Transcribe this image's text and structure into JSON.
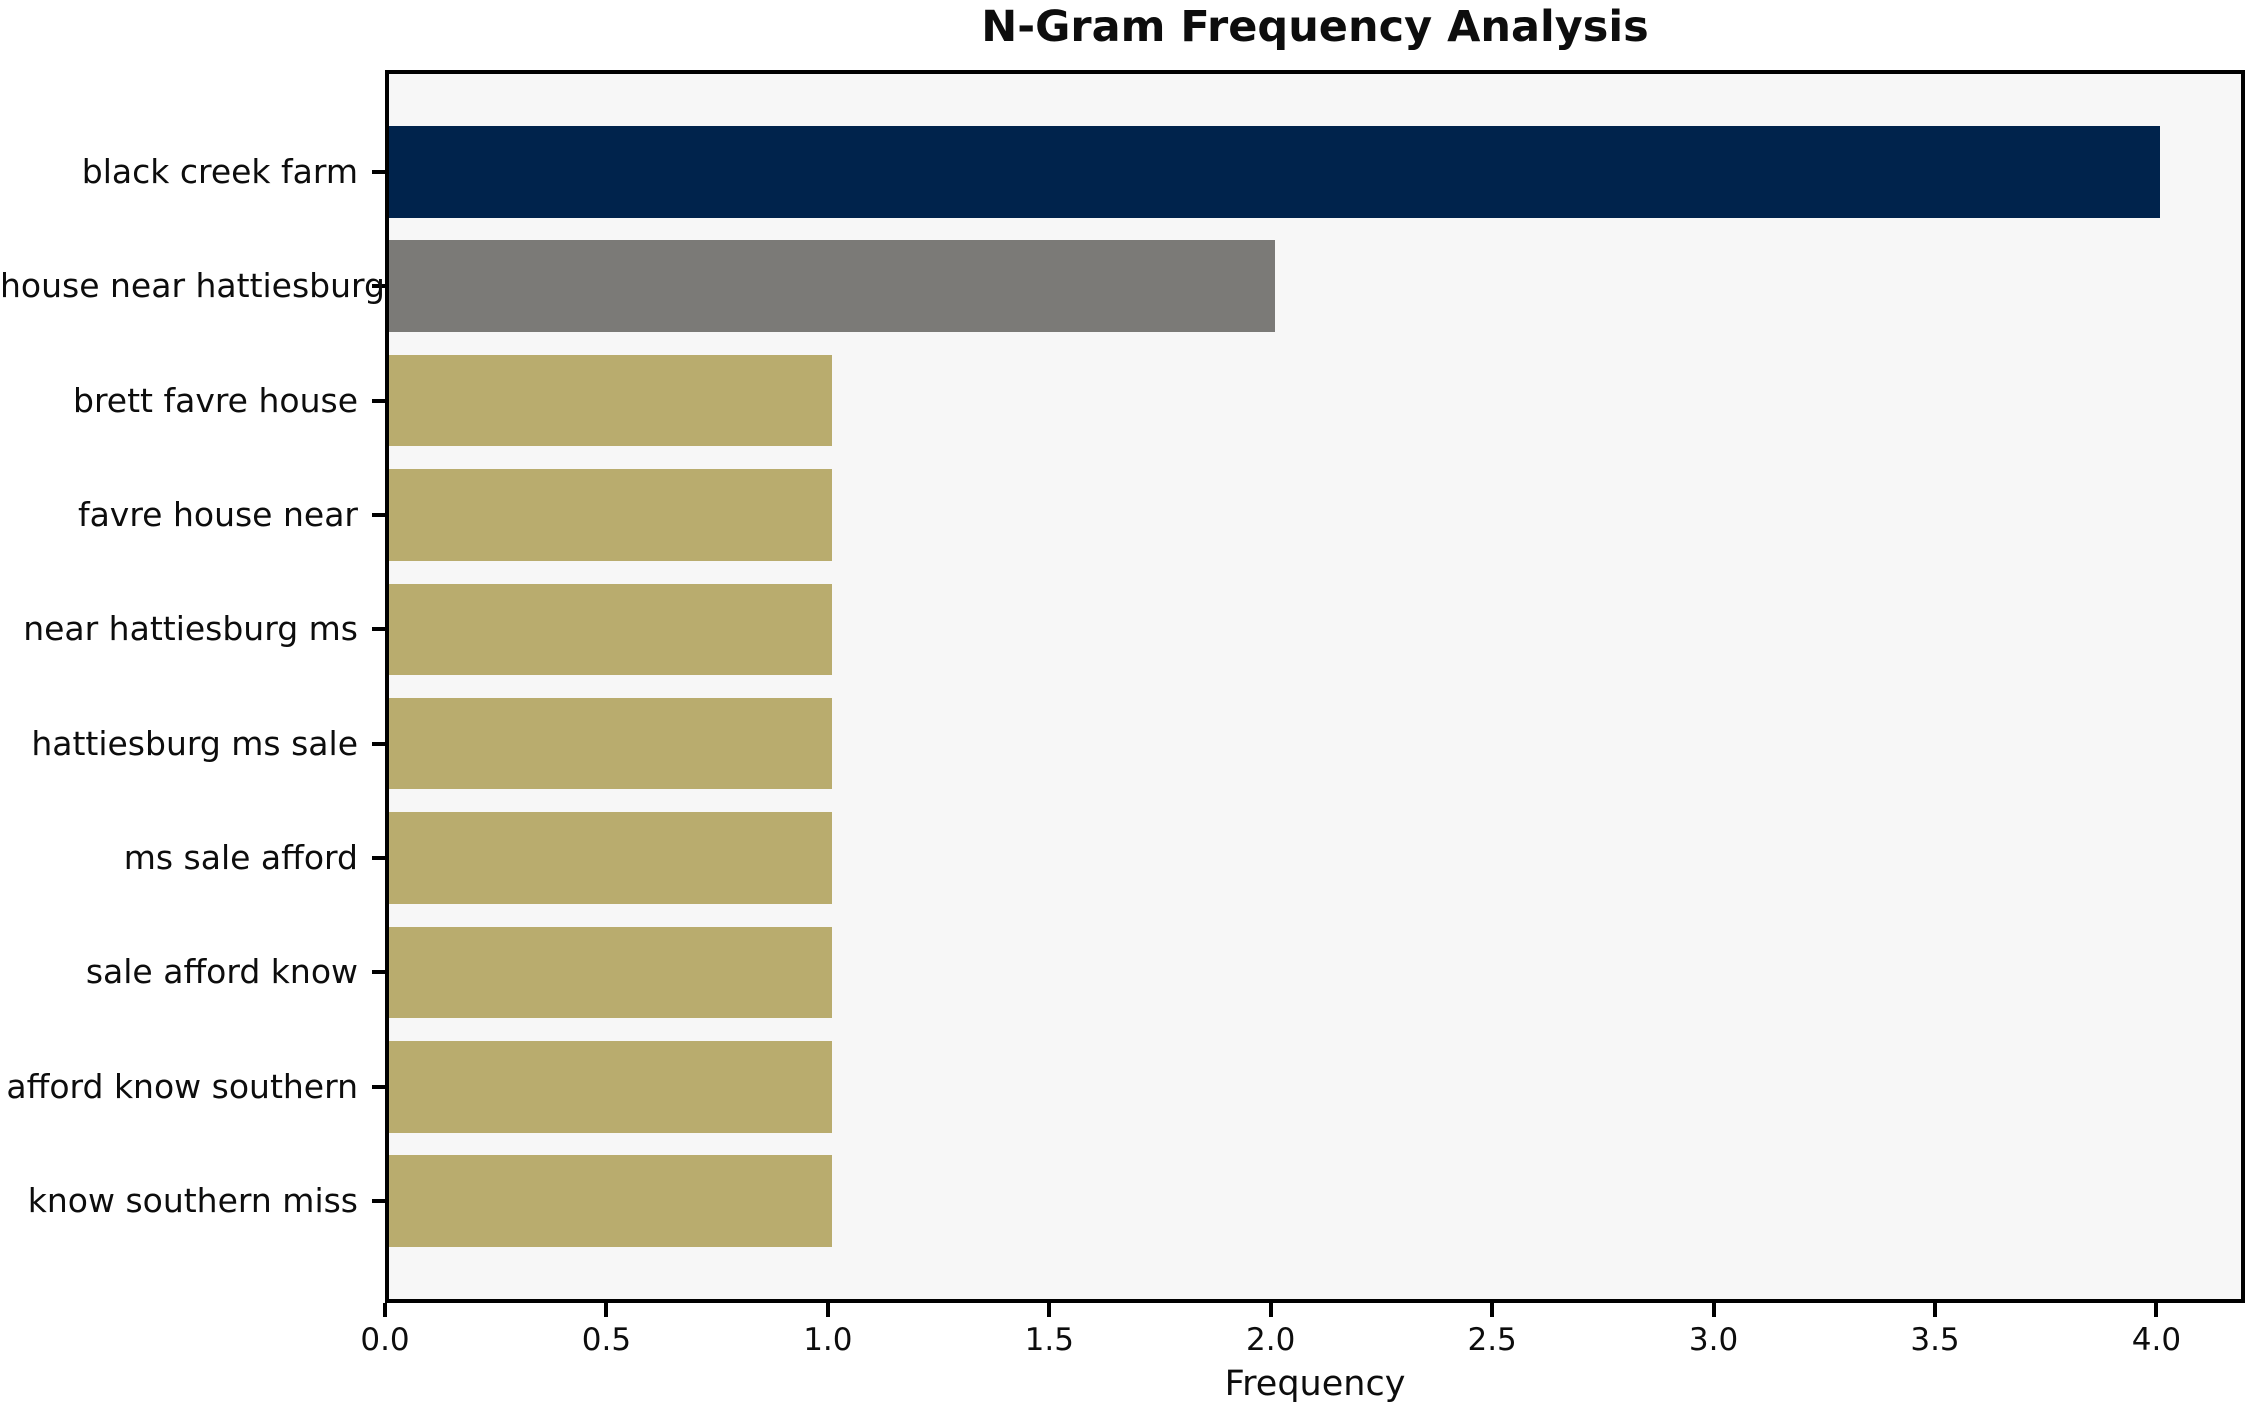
{
  "chart_data": {
    "type": "bar",
    "orientation": "horizontal",
    "title": "N-Gram Frequency Analysis",
    "xlabel": "Frequency",
    "ylabel": "",
    "categories": [
      "black creek farm",
      "house near hattiesburg",
      "brett favre house",
      "favre house near",
      "near hattiesburg ms",
      "hattiesburg ms sale",
      "ms sale afford",
      "sale afford know",
      "afford know southern",
      "know southern miss"
    ],
    "values": [
      4,
      2,
      1,
      1,
      1,
      1,
      1,
      1,
      1,
      1
    ],
    "bar_colors": [
      "#00234C",
      "#7B7A77",
      "#B9AC6E",
      "#B9AC6E",
      "#B9AC6E",
      "#B9AC6E",
      "#B9AC6E",
      "#B9AC6E",
      "#B9AC6E",
      "#B9AC6E"
    ],
    "xlim": [
      0,
      4.2
    ],
    "xticks": [
      0.0,
      0.5,
      1.0,
      1.5,
      2.0,
      2.5,
      3.0,
      3.5,
      4.0
    ],
    "xtick_labels": [
      "0.0",
      "0.5",
      "1.0",
      "1.5",
      "2.0",
      "2.5",
      "3.0",
      "3.5",
      "4.0"
    ],
    "grid": false,
    "legend": null,
    "colors": {
      "plot_background": "#F7F7F7",
      "figure_background": "#FFFFFF",
      "spine": "#000000",
      "text": "#0D0D0D"
    }
  }
}
